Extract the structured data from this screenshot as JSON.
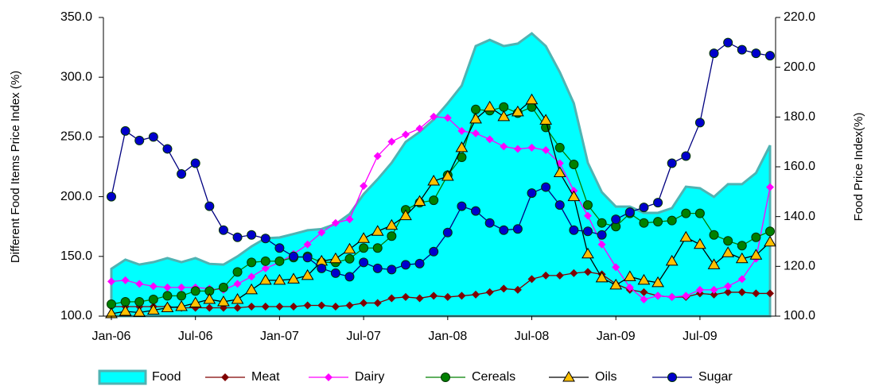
{
  "chart_data": {
    "type": "line",
    "y_label": "Different Food Items Price Index (%)",
    "y2_label": "Food Price Index(%)",
    "categories": [
      "Jan-06",
      null,
      null,
      null,
      null,
      null,
      "Jul-06",
      null,
      null,
      null,
      null,
      null,
      "Jan-07",
      null,
      null,
      null,
      null,
      null,
      "Jul-07",
      null,
      null,
      null,
      null,
      null,
      "Jan-08",
      null,
      null,
      null,
      null,
      null,
      "Jul-08",
      null,
      null,
      null,
      null,
      null,
      "Jan-09",
      null,
      null,
      null,
      null,
      null,
      "Jul-09",
      null,
      null,
      null,
      null,
      null
    ],
    "ylim": [
      100,
      350
    ],
    "yticks": [
      {
        "value": 100,
        "label": "100.0"
      },
      {
        "value": 150,
        "label": "150.0"
      },
      {
        "value": 200,
        "label": "200.0"
      },
      {
        "value": 250,
        "label": "250.0"
      },
      {
        "value": 300,
        "label": "300.0"
      },
      {
        "value": 350,
        "label": "350.0"
      }
    ],
    "y2lim": [
      100,
      220
    ],
    "y2ticks": [
      {
        "value": 100,
        "label": "100.0"
      },
      {
        "value": 120,
        "label": "120.0"
      },
      {
        "value": 140,
        "label": "140.0"
      },
      {
        "value": 160,
        "label": "160.0"
      },
      {
        "value": 180,
        "label": "180.0"
      },
      {
        "value": 200,
        "label": "200.0"
      },
      {
        "value": 220,
        "label": "220.0"
      }
    ],
    "grid": false,
    "legend": "bottom",
    "series": [
      {
        "name": "Food",
        "type": "area",
        "axis": "y2",
        "color": "#00ffff",
        "values": [
          119,
          122.7,
          120.7,
          121.7,
          123.3,
          121.7,
          123.3,
          121,
          120.7,
          124,
          128,
          131.3,
          131.6,
          133,
          134.5,
          135,
          137,
          141,
          149,
          155,
          161.6,
          170,
          174,
          179,
          185.5,
          192.6,
          208.5,
          211,
          208.5,
          209.5,
          213.6,
          208.5,
          198,
          185.5,
          161.6,
          149.8,
          144,
          144,
          141.5,
          141.5,
          143.4,
          152,
          151.4,
          147.9,
          153,
          153,
          157.5,
          168.6
        ]
      },
      {
        "name": "Meat",
        "color": "#800000",
        "values": [
          108,
          108,
          108,
          108,
          108,
          107,
          107,
          107,
          107,
          107,
          108,
          108,
          108,
          108,
          109,
          109,
          108,
          109,
          111,
          111,
          115,
          116,
          115,
          117,
          116,
          117,
          118,
          120,
          123,
          122,
          131,
          134,
          134,
          136,
          137,
          135,
          127,
          122,
          120,
          117,
          116,
          116,
          119,
          118,
          120,
          120,
          119,
          119
        ]
      },
      {
        "name": "Dairy",
        "color": "#ff00ff",
        "values": [
          129,
          130,
          127,
          125,
          124,
          124,
          124,
          123,
          122,
          127,
          133,
          140,
          145,
          152,
          160,
          170,
          178,
          181,
          209,
          234,
          246,
          252,
          257,
          267,
          266,
          255,
          253,
          248,
          242,
          240,
          241,
          239,
          228,
          205,
          184,
          160,
          141,
          124,
          114,
          117,
          116,
          117,
          122,
          122,
          125,
          131,
          148,
          208
        ]
      },
      {
        "name": "Cereals",
        "color": "#008000",
        "values": [
          110,
          112,
          112,
          114,
          117,
          117,
          121,
          121,
          124,
          137,
          145,
          146,
          146,
          149,
          150,
          145,
          145,
          148,
          157,
          157,
          167,
          189,
          195,
          197,
          218,
          233,
          273,
          272,
          275,
          270,
          275,
          258,
          241,
          227,
          193,
          178,
          175,
          186,
          178,
          179,
          180,
          186,
          186,
          168,
          163,
          159,
          166,
          171
        ]
      },
      {
        "name": "Oils",
        "color": "#ffc000",
        "values": [
          102,
          104,
          103,
          105,
          107,
          108,
          111,
          114,
          112,
          114,
          122,
          130,
          130,
          131,
          134,
          146,
          148,
          156,
          165,
          171,
          176,
          184,
          196,
          213,
          217,
          241,
          265,
          275,
          267,
          271,
          281,
          264,
          220,
          200,
          152,
          132,
          126,
          133,
          130,
          128,
          146,
          166,
          160,
          143,
          153,
          148,
          151,
          162
        ]
      },
      {
        "name": "Sugar",
        "color": "#0000cc",
        "values": [
          200,
          255,
          247,
          250,
          240,
          219,
          228,
          192,
          172,
          166,
          168,
          165,
          157,
          150,
          149,
          140,
          136,
          133,
          145,
          140,
          139,
          143,
          144,
          154,
          170,
          192,
          188,
          178,
          172,
          173,
          203,
          208,
          193,
          172,
          171,
          168,
          181,
          187,
          191,
          195,
          228,
          234,
          262,
          320,
          329,
          323,
          320,
          318
        ]
      }
    ]
  }
}
